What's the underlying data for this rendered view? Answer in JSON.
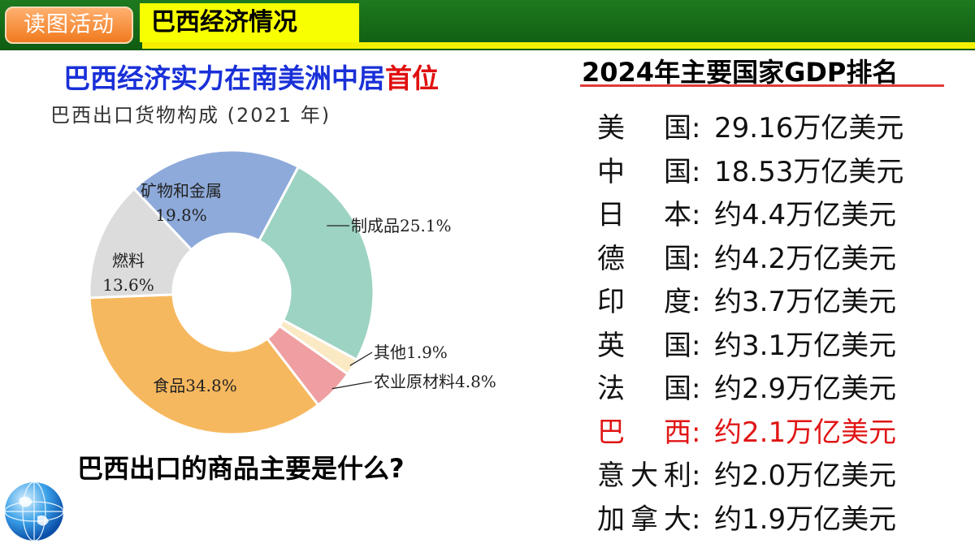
{
  "header": {
    "tag_label": "读图活动",
    "section_title": "巴西经济情况"
  },
  "headline": {
    "main": "巴西经济实力在南美洲中居",
    "highlight": "首位"
  },
  "question": "巴西出口的商品主要是什么?",
  "ranking": {
    "title": "2024年主要国家GDP排名",
    "rows": [
      {
        "country": "美国",
        "value": "29.16万亿美元",
        "highlight": false
      },
      {
        "country": "中国",
        "value": "18.53万亿美元",
        "highlight": false
      },
      {
        "country": "日本",
        "value": "约4.4万亿美元",
        "highlight": false
      },
      {
        "country": "德国",
        "value": "约4.2万亿美元",
        "highlight": false
      },
      {
        "country": "印度",
        "value": "约3.7万亿美元",
        "highlight": false
      },
      {
        "country": "英国",
        "value": "约3.1万亿美元",
        "highlight": false
      },
      {
        "country": "法国",
        "value": "约2.9万亿美元",
        "highlight": false
      },
      {
        "country": "巴西",
        "value": "约2.1万亿美元",
        "highlight": true
      },
      {
        "country": "意大利",
        "value": "约2.0万亿美元",
        "highlight": false
      },
      {
        "country": "加拿大",
        "value": "约1.9万亿美元",
        "highlight": false
      }
    ],
    "colon": ":",
    "highlight_color": "#e01515"
  },
  "chart_data": {
    "type": "pie",
    "title": "巴西出口货物构成 (2021 年)",
    "slices": [
      {
        "name": "制成品",
        "label": "制成品25.1%",
        "value": 25.1,
        "color": "#9dd3c3"
      },
      {
        "name": "其他",
        "label": "其他1.9%",
        "value": 1.9,
        "color": "#fbe9c4"
      },
      {
        "name": "农业原材料",
        "label": "农业原材料4.8%",
        "value": 4.8,
        "color": "#ef9fa1"
      },
      {
        "name": "食品",
        "label": "食品34.8%",
        "value": 34.8,
        "color": "#f6b85e"
      },
      {
        "name": "燃料",
        "label": "燃料 13.6%",
        "label_lines": [
          "燃料",
          "13.6%"
        ],
        "value": 13.6,
        "color": "#dcdcdc"
      },
      {
        "name": "矿物和金属",
        "label": "矿物和金属 19.8%",
        "label_lines": [
          "矿物和金属",
          "19.8%"
        ],
        "value": 19.8,
        "color": "#8eaada"
      }
    ],
    "donut": true
  }
}
